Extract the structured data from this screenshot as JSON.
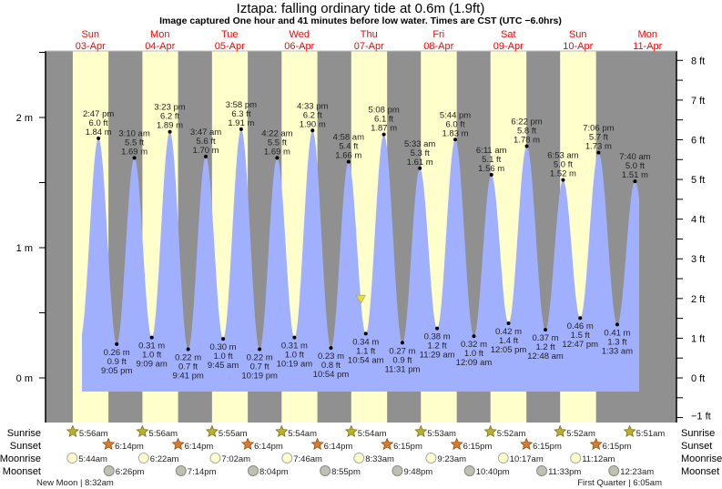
{
  "chart_data": {
    "type": "area",
    "title": "Iztapa: falling  ordinary tide at 0.6m (1.9ft)",
    "subtitle": "Image captured One hour and 41 minutes before low water. Times are CST (UTC −6.0hrs)",
    "ylabel_left_unit": "m",
    "ylabel_right_unit": "ft",
    "ylim_m": [
      -0.34,
      2.5
    ],
    "left_ticks": [
      "0 m",
      "1 m",
      "2 m"
    ],
    "right_ticks": [
      "−1 ft",
      "0 ft",
      "1 ft",
      "2 ft",
      "3 ft",
      "4 ft",
      "5 ft",
      "6 ft",
      "7 ft",
      "8 ft"
    ],
    "colors": {
      "water": "#a0b0ff",
      "day": "#ffffcc",
      "night": "#909090",
      "date": "#ff0000",
      "marker": "#e8e020"
    },
    "days": [
      {
        "dow": "Sun",
        "date": "03-Apr"
      },
      {
        "dow": "Mon",
        "date": "04-Apr"
      },
      {
        "dow": "Tue",
        "date": "05-Apr"
      },
      {
        "dow": "Wed",
        "date": "06-Apr"
      },
      {
        "dow": "Thu",
        "date": "07-Apr"
      },
      {
        "dow": "Fri",
        "date": "08-Apr"
      },
      {
        "dow": "Sat",
        "date": "09-Apr"
      },
      {
        "dow": "Sun",
        "date": "10-Apr"
      },
      {
        "dow": "Mon",
        "date": "11-Apr"
      }
    ],
    "current": {
      "day": 4,
      "time": "9:13 am",
      "m": 0.6,
      "ft": 1.9
    },
    "tides": [
      {
        "day": 0,
        "time": "2:47 pm",
        "ft": "6.0 ft",
        "m": 1.84,
        "type": "high"
      },
      {
        "day": 0,
        "time": "9:05 pm",
        "ft": "0.9 ft",
        "m": 0.26,
        "type": "low"
      },
      {
        "day": 1,
        "time": "3:10 am",
        "ft": "5.5 ft",
        "m": 1.69,
        "type": "high"
      },
      {
        "day": 1,
        "time": "9:09 am",
        "ft": "1.0 ft",
        "m": 0.31,
        "type": "low"
      },
      {
        "day": 1,
        "time": "3:23 pm",
        "ft": "6.2 ft",
        "m": 1.89,
        "type": "high"
      },
      {
        "day": 1,
        "time": "9:41 pm",
        "ft": "0.7 ft",
        "m": 0.22,
        "type": "low"
      },
      {
        "day": 2,
        "time": "3:47 am",
        "ft": "5.6 ft",
        "m": 1.7,
        "type": "high"
      },
      {
        "day": 2,
        "time": "9:45 am",
        "ft": "1.0 ft",
        "m": 0.3,
        "type": "low"
      },
      {
        "day": 2,
        "time": "3:58 pm",
        "ft": "6.3 ft",
        "m": 1.91,
        "type": "high"
      },
      {
        "day": 2,
        "time": "10:19 pm",
        "ft": "0.7 ft",
        "m": 0.22,
        "type": "low"
      },
      {
        "day": 3,
        "time": "4:22 am",
        "ft": "5.5 ft",
        "m": 1.69,
        "type": "high"
      },
      {
        "day": 3,
        "time": "10:19 am",
        "ft": "1.0 ft",
        "m": 0.31,
        "type": "low"
      },
      {
        "day": 3,
        "time": "4:33 pm",
        "ft": "6.2 ft",
        "m": 1.9,
        "type": "high"
      },
      {
        "day": 3,
        "time": "10:54 pm",
        "ft": "0.8 ft",
        "m": 0.23,
        "type": "low"
      },
      {
        "day": 4,
        "time": "4:58 am",
        "ft": "5.4 ft",
        "m": 1.66,
        "type": "high"
      },
      {
        "day": 4,
        "time": "10:54 am",
        "ft": "1.1 ft",
        "m": 0.34,
        "type": "low"
      },
      {
        "day": 4,
        "time": "5:08 pm",
        "ft": "6.1 ft",
        "m": 1.87,
        "type": "high"
      },
      {
        "day": 4,
        "time": "11:31 pm",
        "ft": "0.9 ft",
        "m": 0.27,
        "type": "low"
      },
      {
        "day": 5,
        "time": "5:33 am",
        "ft": "5.3 ft",
        "m": 1.61,
        "type": "high"
      },
      {
        "day": 5,
        "time": "11:29 am",
        "ft": "1.2 ft",
        "m": 0.38,
        "type": "low"
      },
      {
        "day": 5,
        "time": "5:44 pm",
        "ft": "6.0 ft",
        "m": 1.83,
        "type": "high"
      },
      {
        "day": 6,
        "time": "12:09 am",
        "ft": "1.0 ft",
        "m": 0.32,
        "type": "low"
      },
      {
        "day": 6,
        "time": "6:11 am",
        "ft": "5.1 ft",
        "m": 1.56,
        "type": "high"
      },
      {
        "day": 6,
        "time": "12:05 pm",
        "ft": "1.4 ft",
        "m": 0.42,
        "type": "low"
      },
      {
        "day": 6,
        "time": "6:22 pm",
        "ft": "5.8 ft",
        "m": 1.78,
        "type": "high"
      },
      {
        "day": 7,
        "time": "12:48 am",
        "ft": "1.2 ft",
        "m": 0.37,
        "type": "low"
      },
      {
        "day": 7,
        "time": "6:53 am",
        "ft": "5.0 ft",
        "m": 1.52,
        "type": "high"
      },
      {
        "day": 7,
        "time": "12:47 pm",
        "ft": "1.5 ft",
        "m": 0.46,
        "type": "low"
      },
      {
        "day": 7,
        "time": "7:06 pm",
        "ft": "5.7 ft",
        "m": 1.73,
        "type": "high"
      },
      {
        "day": 8,
        "time": "1:33 am",
        "ft": "1.3 ft",
        "m": 0.41,
        "type": "low"
      },
      {
        "day": 8,
        "time": "7:40 am",
        "ft": "5.0 ft",
        "m": 1.51,
        "type": "high"
      }
    ]
  },
  "almanac": {
    "row_labels": {
      "sunrise": "Sunrise",
      "sunset": "Sunset",
      "moonrise": "Moonrise",
      "moonset": "Moonset"
    },
    "sunrise": [
      {
        "day": 0,
        "time": "5:56am"
      },
      {
        "day": 1,
        "time": "5:56am"
      },
      {
        "day": 2,
        "time": "5:55am"
      },
      {
        "day": 3,
        "time": "5:54am"
      },
      {
        "day": 4,
        "time": "5:54am"
      },
      {
        "day": 5,
        "time": "5:53am"
      },
      {
        "day": 6,
        "time": "5:52am"
      },
      {
        "day": 7,
        "time": "5:52am"
      },
      {
        "day": 8,
        "time": "5:51am"
      }
    ],
    "sunset": [
      {
        "day": 0,
        "time": "6:14pm"
      },
      {
        "day": 1,
        "time": "6:14pm"
      },
      {
        "day": 2,
        "time": "6:14pm"
      },
      {
        "day": 3,
        "time": "6:14pm"
      },
      {
        "day": 4,
        "time": "6:15pm"
      },
      {
        "day": 5,
        "time": "6:15pm"
      },
      {
        "day": 6,
        "time": "6:15pm"
      },
      {
        "day": 7,
        "time": "6:15pm"
      }
    ],
    "moonrise": [
      {
        "day": 0,
        "time": "5:44am"
      },
      {
        "day": 1,
        "time": "6:22am"
      },
      {
        "day": 2,
        "time": "7:02am"
      },
      {
        "day": 3,
        "time": "7:46am"
      },
      {
        "day": 4,
        "time": "8:33am"
      },
      {
        "day": 5,
        "time": "9:23am"
      },
      {
        "day": 6,
        "time": "10:17am"
      },
      {
        "day": 7,
        "time": "11:12am"
      }
    ],
    "moonset": [
      {
        "day": 0,
        "time": "6:26pm"
      },
      {
        "day": 1,
        "time": "7:14pm"
      },
      {
        "day": 2,
        "time": "8:04pm"
      },
      {
        "day": 3,
        "time": "8:55pm"
      },
      {
        "day": 4,
        "time": "9:48pm"
      },
      {
        "day": 5,
        "time": "10:40pm"
      },
      {
        "day": 6,
        "time": "11:33pm"
      },
      {
        "day": 8,
        "time": "12:23am"
      }
    ],
    "phases": [
      {
        "label": "New Moon | 8:32am"
      },
      {
        "label": "First Quarter | 6:05am"
      }
    ]
  }
}
